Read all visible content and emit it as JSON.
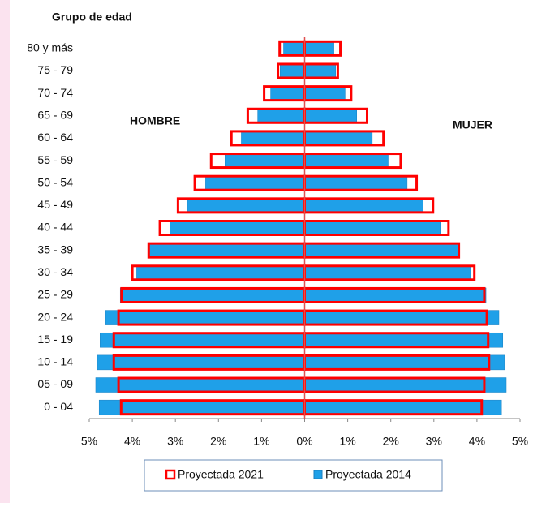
{
  "chart_data": {
    "type": "pyramid",
    "title": "Grupo de edad",
    "left_label": "HOMBRE",
    "right_label": "MUJER",
    "categories": [
      "0 - 04",
      "05 - 09",
      "10 - 14",
      "15 - 19",
      "20 - 24",
      "25 - 29",
      "30 - 34",
      "35 - 39",
      "40 - 44",
      "45 - 49",
      "50 - 54",
      "55 - 59",
      "60 - 64",
      "65 - 69",
      "70 - 74",
      "75 - 79",
      "80 y más"
    ],
    "series": [
      {
        "name": "Proyectada 2021",
        "color": "#ff0000",
        "style": "outline",
        "hombre": [
          -4.26,
          -4.32,
          -4.43,
          -4.43,
          -4.32,
          -4.25,
          -4.0,
          -3.62,
          -3.36,
          -2.94,
          -2.55,
          -2.17,
          -1.7,
          -1.32,
          -0.94,
          -0.62,
          -0.58
        ],
        "mujer": [
          4.11,
          4.17,
          4.28,
          4.26,
          4.23,
          4.17,
          3.94,
          3.58,
          3.34,
          2.98,
          2.6,
          2.23,
          1.83,
          1.45,
          1.08,
          0.77,
          0.83
        ]
      },
      {
        "name": "Proyectada 2014",
        "color": "#1fa0e8",
        "style": "fill",
        "hombre": [
          -4.77,
          -4.85,
          -4.81,
          -4.75,
          -4.62,
          -4.28,
          -3.9,
          -3.62,
          -3.13,
          -2.72,
          -2.3,
          -1.85,
          -1.47,
          -1.09,
          -0.79,
          -0.57,
          -0.49
        ],
        "mujer": [
          4.57,
          4.68,
          4.64,
          4.6,
          4.51,
          4.21,
          3.85,
          3.58,
          3.15,
          2.75,
          2.38,
          1.94,
          1.57,
          1.21,
          0.94,
          0.72,
          0.68
        ]
      }
    ],
    "xlim": [
      -5,
      5
    ],
    "xticks": [
      {
        "value": -5,
        "label": "5%"
      },
      {
        "value": -4,
        "label": "4%"
      },
      {
        "value": -3,
        "label": "3%"
      },
      {
        "value": -2,
        "label": "2%"
      },
      {
        "value": -1,
        "label": "1%"
      },
      {
        "value": 0,
        "label": "0%"
      },
      {
        "value": 1,
        "label": "1%"
      },
      {
        "value": 2,
        "label": "2%"
      },
      {
        "value": 3,
        "label": "3%"
      },
      {
        "value": 4,
        "label": "4%"
      },
      {
        "value": 5,
        "label": "5%"
      }
    ],
    "legend": "bottom"
  }
}
